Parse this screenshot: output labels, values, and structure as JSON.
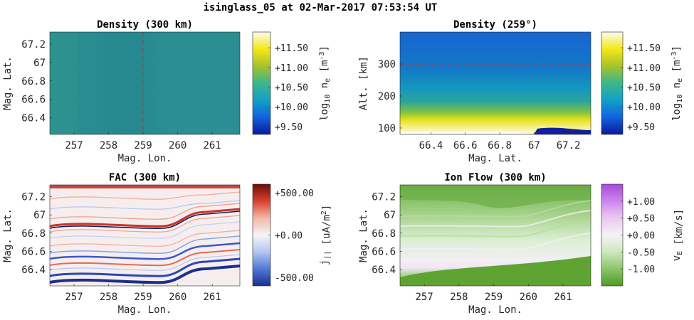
{
  "figure_title": "isinglass_05 at 02-Mar-2017 07:53:54 UT",
  "chart_data": [
    {
      "type": "heatmap",
      "title": "Density (300 km)",
      "xlabel": "Mag. Lon.",
      "ylabel": "Mag. Lat.",
      "xlim": [
        256.3,
        261.8
      ],
      "ylim": [
        66.22,
        67.33
      ],
      "xticks": [
        257,
        258,
        259,
        260,
        261
      ],
      "xtick_labels": [
        "257",
        "258",
        "259",
        "260",
        "261"
      ],
      "yticks": [
        66.4,
        66.6,
        66.8,
        67,
        67.2
      ],
      "ytick_labels": [
        "66.4",
        "66.6",
        "66.8",
        "67",
        "67.2"
      ],
      "dashed_line_x": 259,
      "colorbar": {
        "label_base": "log",
        "label_sub": "10",
        "label_mid": " n",
        "label_sub2": "e",
        "label_unit": " [m",
        "label_sup": "-3",
        "label_end": "]",
        "range": [
          9.3,
          11.9
        ],
        "ticks": [
          9.5,
          10.0,
          10.5,
          11.0,
          11.5
        ],
        "tick_labels": [
          "+9.50",
          "+10.00",
          "+10.50",
          "+11.00",
          "+11.50"
        ],
        "colormap": "parula",
        "colors": [
          "#0b1a9c",
          "#1261de",
          "#13a0c6",
          "#3bb68e",
          "#a6c22c",
          "#f5e817",
          "#fbfbf0"
        ]
      },
      "field_description_value": 10.2
    },
    {
      "type": "heatmap",
      "title": "Density (259°)",
      "xlabel": "Mag. Lat.",
      "ylabel": "Alt. [km]",
      "xlim": [
        66.22,
        67.33
      ],
      "ylim": [
        80,
        400
      ],
      "xticks": [
        66.4,
        66.6,
        66.8,
        67,
        67.2
      ],
      "xtick_labels": [
        "66.4",
        "66.6",
        "66.8",
        "67",
        "67.2"
      ],
      "yticks": [
        100,
        200,
        300
      ],
      "ytick_labels": [
        "100",
        "200",
        "300"
      ],
      "dashed_line_y": 300,
      "colorbar": {
        "label_base": "log",
        "label_sub": "10",
        "label_mid": " n",
        "label_sub2": "e",
        "label_unit": " [m",
        "label_sup": "-3",
        "label_end": "]",
        "range": [
          9.3,
          11.9
        ],
        "ticks": [
          9.5,
          10.0,
          10.5,
          11.0,
          11.5
        ],
        "tick_labels": [
          "+9.50",
          "+10.00",
          "+10.50",
          "+11.00",
          "+11.50"
        ],
        "colormap": "parula",
        "colors": [
          "#0b1a9c",
          "#1261de",
          "#13a0c6",
          "#3bb68e",
          "#a6c22c",
          "#f5e817",
          "#fbfbf0"
        ]
      }
    },
    {
      "type": "heatmap",
      "title": "FAC (300 km)",
      "xlabel": "Mag. Lon.",
      "ylabel": "Mag. Lat.",
      "xlim": [
        256.3,
        261.8
      ],
      "ylim": [
        66.22,
        67.33
      ],
      "xticks": [
        257,
        258,
        259,
        260,
        261
      ],
      "xtick_labels": [
        "257",
        "258",
        "259",
        "260",
        "261"
      ],
      "yticks": [
        66.4,
        66.6,
        66.8,
        67,
        67.2
      ],
      "ytick_labels": [
        "66.4",
        "66.6",
        "66.8",
        "67",
        "67.2"
      ],
      "colorbar": {
        "label_base": "j",
        "label_sub": "||",
        "label_mid": "",
        "label_sub2": "",
        "label_unit": " [uA/m",
        "label_sup": "2",
        "label_end": "]",
        "range": [
          -600,
          600
        ],
        "ticks": [
          -500,
          0,
          500
        ],
        "tick_labels": [
          "-500.00",
          "+0.00",
          "+500.00"
        ],
        "colormap": "diverging red-blue",
        "colors": [
          "#1a2f8f",
          "#4f79d6",
          "#b5c4f2",
          "#f5f4f7",
          "#f4b7a6",
          "#d8412e",
          "#6e0b08"
        ]
      }
    },
    {
      "type": "heatmap",
      "title": "Ion Flow (300 km)",
      "xlabel": "Mag. Lon.",
      "ylabel": "Mag. Lat.",
      "xlim": [
        256.3,
        261.8
      ],
      "ylim": [
        66.22,
        67.33
      ],
      "xticks": [
        257,
        258,
        259,
        260,
        261
      ],
      "xtick_labels": [
        "257",
        "258",
        "259",
        "260",
        "261"
      ],
      "yticks": [
        66.4,
        66.6,
        66.8,
        67,
        67.2
      ],
      "ytick_labels": [
        "66.4",
        "66.6",
        "66.8",
        "67",
        "67.2"
      ],
      "colorbar": {
        "label_base": "v",
        "label_sub": "E",
        "label_mid": "",
        "label_sub2": "",
        "label_unit": " [km/s]",
        "label_sup": "",
        "label_end": "",
        "range": [
          -1.5,
          1.5
        ],
        "ticks": [
          -1.0,
          -0.5,
          0.0,
          0.5,
          1.0
        ],
        "tick_labels": [
          "-1.00",
          "-0.50",
          "+0.00",
          "+0.50",
          "+1.00"
        ],
        "colormap": "diverging green-purple",
        "colors": [
          "#4d9a22",
          "#8cc56a",
          "#cde8c0",
          "#f4f3f3",
          "#eac9f2",
          "#cc86ee",
          "#a64bd8"
        ]
      }
    }
  ]
}
